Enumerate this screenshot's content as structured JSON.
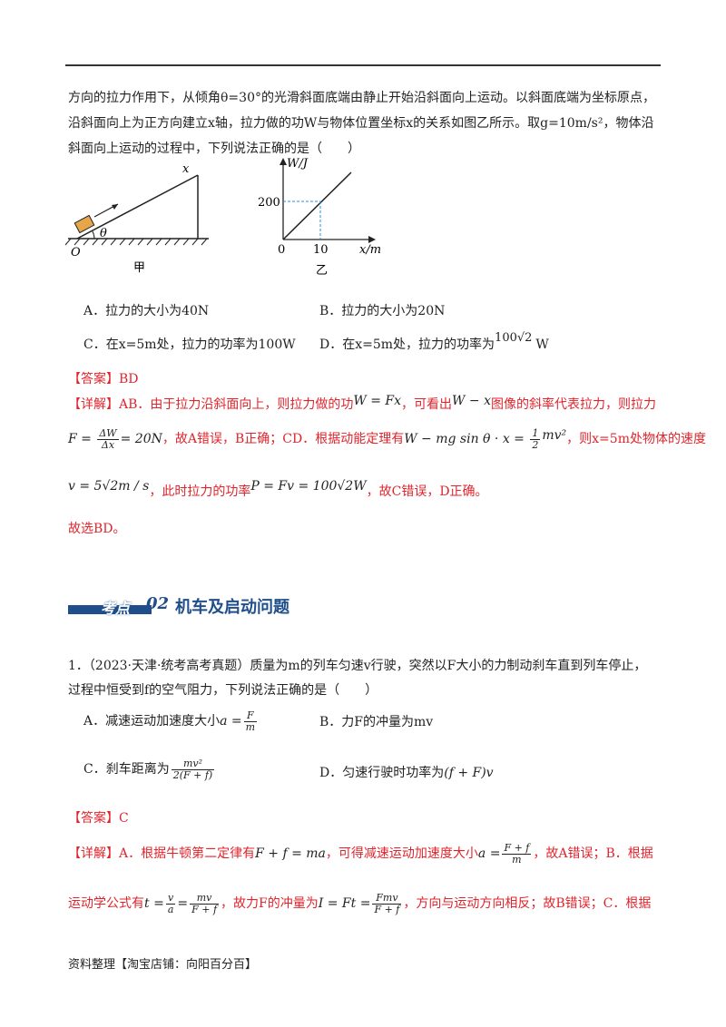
{
  "problem1": {
    "line1": "方向的拉力作用下，从倾角θ=30°的光滑斜面底端由静止开始沿斜面向上运动。以斜面底端为坐标原点，",
    "line2": "沿斜面向上为正方向建立x轴，拉力做的功W与物体位置坐标x的关系如图乙所示。取g=10m/s²，物体沿",
    "line3": "斜面向上运动的过程中，下列说法正确的是（　　）",
    "figA": {
      "caption": "甲",
      "label_x": "x",
      "label_theta": "θ",
      "label_O": "O"
    },
    "figB": {
      "caption": "乙",
      "ylabel": "W/J",
      "xlabel": "x/m",
      "y_tick": "200",
      "x_tick": "10",
      "origin": "0"
    },
    "options": {
      "A": "A．拉力的大小为40N",
      "B": "B．拉力的大小为20N",
      "C": "C．在x=5m处，拉力的功率为100W",
      "D_prefix": "D．在x=5m处，拉力的功率为",
      "D_value": "100√2",
      "D_unit": "W"
    },
    "answer": "【答案】BD",
    "detail1_a": "【详解】AB．由于拉力沿斜面向上，则拉力做的功",
    "detail1_m1": "W = Fx",
    "detail1_b": "，可看出",
    "detail1_m2": "W − x",
    "detail1_c": "图像的斜率代表拉力，则拉力",
    "detail2_a": "F = ",
    "detail2_num": "ΔW",
    "detail2_den": "Δx",
    "detail2_b": "= 20N",
    "detail2_c": "，故A错误，B正确；CD．根据动能定理有",
    "detail2_m": "W − mg sin θ · x = ",
    "detail2_hnum": "1",
    "detail2_hden": "2",
    "detail2_m2": "mv²",
    "detail2_d": "，则x=5m处物体的速度",
    "detail3_m1": "v = 5√2m / s",
    "detail3_a": "，此时拉力的功率",
    "detail3_m2": "P = Fv = 100√2W",
    "detail3_b": "，故C错误，D正确。",
    "conclusion": "故选BD。"
  },
  "section": {
    "kd": "考点",
    "num": "02",
    "title": "机车及启动问题"
  },
  "problem2": {
    "line1": "1．（2023·天津·统考高考真题）质量为m的列车匀速v行驶，突然以F大小的力制动刹车直到列车停止，",
    "line2": "过程中恒受到f的空气阻力，下列说法正确的是（　　）",
    "options": {
      "A_prefix": "A．减速运动加速度大小",
      "A_lhs": "a =",
      "A_num": "F",
      "A_den": "m",
      "B": "B．力F的冲量为mv",
      "C_prefix": "C．刹车距离为",
      "C_num": "mv²",
      "C_den": "2(F + f)",
      "D_prefix": "D．匀速行驶时功率为",
      "D_m": "(f + F)v"
    },
    "answer": "【答案】C",
    "detail1_a": "【详解】A．根据牛顿第二定律有",
    "detail1_m": "F + f = ma",
    "detail1_b": "，可得减速运动加速度大小",
    "detail1_lhs": "a =",
    "detail1_num": "F + f",
    "detail1_den": "m",
    "detail1_c": "，故A错误；B．根据",
    "detail2_a": "运动学公式有",
    "detail2_lhs": "t =",
    "detail2_n1": "v",
    "detail2_d1": "a",
    "detail2_eq": "=",
    "detail2_n2": "mv",
    "detail2_d2": "F + f",
    "detail2_b": "，故力F的冲量为",
    "detail2_lhs2": "I = Ft =",
    "detail2_n3": "Fmv",
    "detail2_d3": "F + f",
    "detail2_c": "，方向与运动方向相反；故B错误；C．根据"
  },
  "footer": "资料整理【淘宝店铺：向阳百分百】"
}
